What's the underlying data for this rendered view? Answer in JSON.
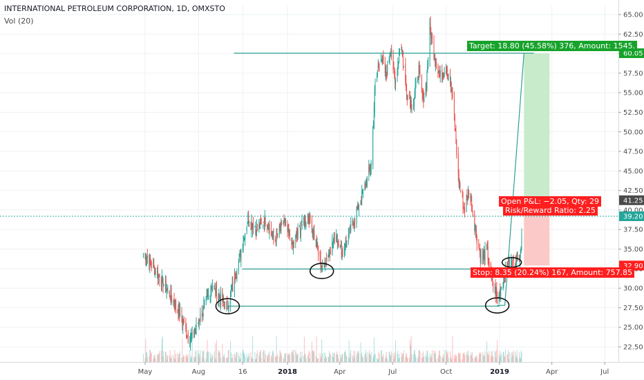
{
  "header": {
    "title": "INTERNATIONAL PETROLEUM CORPORATION, 1D, OMXSTO",
    "volume_label": "Vol (20)"
  },
  "colors": {
    "up": "#26a69a",
    "down": "#ef5350",
    "profit_zone": "#c8ebcb",
    "loss_zone": "#fbc9c7",
    "target_tag": "#17a32b",
    "stop_tag": "#ff1f1f",
    "level_line": "#2e9f8f",
    "dotted_line": "#26a69a",
    "grid": "#eef0f3"
  },
  "chart_data": {
    "type": "candlestick",
    "symbol": "INTERNATIONAL PETROLEUM CORPORATION",
    "timeframe": "1D",
    "exchange": "OMXSTO",
    "x_tick_labels": [
      "May",
      "Aug",
      "16",
      "2018",
      "Apr",
      "Jul",
      "Oct",
      "2019",
      "Apr",
      "Jul"
    ],
    "y_tick_labels": [
      "65.00",
      "62.50",
      "60.00",
      "57.50",
      "55.00",
      "52.50",
      "50.00",
      "47.50",
      "45.00",
      "42.50",
      "40.00",
      "37.50",
      "35.00",
      "32.50",
      "30.00",
      "27.50",
      "25.00",
      "22.50"
    ],
    "ylim": [
      20.5,
      66.5
    ],
    "price_path": [
      [
        "2017-04-28",
        34.5
      ],
      [
        "2017-05-10",
        33.5
      ],
      [
        "2017-05-25",
        31.5
      ],
      [
        "2017-06-15",
        29.0
      ],
      [
        "2017-07-01",
        26.5
      ],
      [
        "2017-07-15",
        23.5
      ],
      [
        "2017-07-25",
        24.5
      ],
      [
        "2017-08-10",
        27.5
      ],
      [
        "2017-08-25",
        30.5
      ],
      [
        "2017-09-05",
        29.0
      ],
      [
        "2017-09-20",
        27.7
      ],
      [
        "2017-10-01",
        31.0
      ],
      [
        "2017-10-12",
        34.5
      ],
      [
        "2017-10-25",
        39.0
      ],
      [
        "2017-11-10",
        37.5
      ],
      [
        "2017-11-25",
        39.0
      ],
      [
        "2017-12-10",
        36.0
      ],
      [
        "2017-12-25",
        38.5
      ],
      [
        "2018-01-10",
        35.5
      ],
      [
        "2018-01-25",
        38.0
      ],
      [
        "2018-02-08",
        39.0
      ],
      [
        "2018-02-20",
        35.5
      ],
      [
        "2018-03-01",
        32.5
      ],
      [
        "2018-03-15",
        35.0
      ],
      [
        "2018-03-25",
        37.0
      ],
      [
        "2018-04-05",
        34.5
      ],
      [
        "2018-04-20",
        37.5
      ],
      [
        "2018-05-01",
        40.0
      ],
      [
        "2018-05-15",
        43.0
      ],
      [
        "2018-05-25",
        46.0
      ],
      [
        "2018-06-01",
        56.0
      ],
      [
        "2018-06-10",
        60.0
      ],
      [
        "2018-06-20",
        57.0
      ],
      [
        "2018-06-28",
        61.0
      ],
      [
        "2018-07-05",
        56.0
      ],
      [
        "2018-07-15",
        61.5
      ],
      [
        "2018-07-25",
        55.0
      ],
      [
        "2018-08-05",
        53.5
      ],
      [
        "2018-08-15",
        58.0
      ],
      [
        "2018-08-22",
        54.0
      ],
      [
        "2018-08-28",
        56.0
      ],
      [
        "2018-09-03",
        63.5
      ],
      [
        "2018-09-10",
        60.0
      ],
      [
        "2018-09-20",
        57.0
      ],
      [
        "2018-10-01",
        58.5
      ],
      [
        "2018-10-08",
        56.5
      ],
      [
        "2018-10-15",
        52.0
      ],
      [
        "2018-10-22",
        44.0
      ],
      [
        "2018-11-01",
        40.0
      ],
      [
        "2018-11-10",
        42.5
      ],
      [
        "2018-11-20",
        37.5
      ],
      [
        "2018-12-01",
        33.5
      ],
      [
        "2018-12-10",
        35.0
      ],
      [
        "2018-12-18",
        31.0
      ],
      [
        "2018-12-28",
        28.5
      ],
      [
        "2019-01-10",
        32.0
      ],
      [
        "2019-01-20",
        33.5
      ],
      [
        "2019-02-01",
        33.5
      ],
      [
        "2019-02-08",
        36.0
      ]
    ],
    "horizontal_lines": [
      {
        "price": 60.05,
        "from": "2017-10-01",
        "to": "2019-03-01"
      },
      {
        "price": 32.45,
        "from": "2017-10-15",
        "to": "2019-02-05"
      },
      {
        "price": 27.7,
        "from": "2017-09-20",
        "to": "2019-01-01"
      }
    ],
    "dotted_line_price": 39.2,
    "circled_lows": [
      {
        "date": "2017-09-20",
        "price": 27.7
      },
      {
        "date": "2018-03-01",
        "price": 32.2
      },
      {
        "date": "2018-12-28",
        "price": 27.8
      },
      {
        "date": "2019-01-22",
        "price": 33.3
      }
    ],
    "long_position": {
      "entry": 41.25,
      "target": 60.05,
      "stop": 32.9,
      "start": "2019-02-12",
      "end": "2019-03-28",
      "target_label": "Target: 18.80 (45.58%) 376, Amount: 1545.",
      "stop_label": "Stop: 8.35 (20.24%) 167, Amount: 757.85",
      "pnl_label": "Open P&L: −2.05, Qty: 29",
      "rr_label": "Risk/Reward Ratio: 2.25"
    },
    "price_tags": [
      {
        "value": "65.00"
      },
      {
        "value": "60.05",
        "color": "#17a32b"
      },
      {
        "value": "41.25",
        "color": "#4a4a4a"
      },
      {
        "value": "39.20",
        "color": "#26a69a"
      },
      {
        "value": "32.90",
        "color": "#ff1f1f"
      }
    ]
  }
}
